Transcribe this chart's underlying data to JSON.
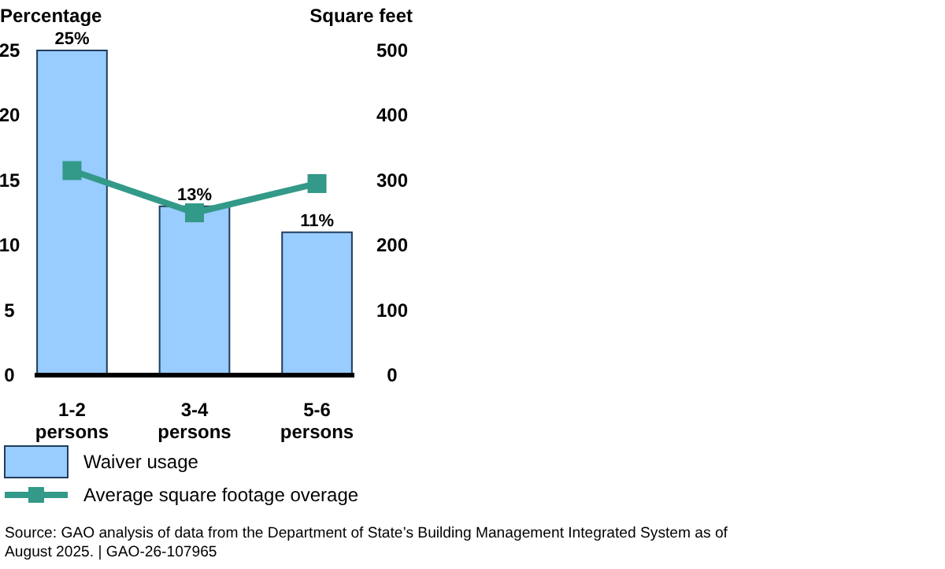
{
  "chart_data": {
    "type": "bar",
    "xlabel": null,
    "ylabel": "Percentage",
    "y2label": "Square feet",
    "categories": [
      "1-2\npersons",
      "3-4\npersons",
      "5-6\npersons"
    ],
    "series": [
      {
        "name": "Waiver usage",
        "color": "#99ccff",
        "values": [
          25,
          13,
          11
        ],
        "value_labels": [
          "25%",
          "13%",
          "11%"
        ]
      },
      {
        "name": "Average square footage overage",
        "type": "line",
        "axis": "y2",
        "color": "#339988",
        "values": [
          315,
          250,
          295
        ],
        "marker": "square"
      }
    ],
    "ylim": [
      0,
      25
    ],
    "yticks": [
      0,
      5,
      10,
      15,
      20,
      25
    ],
    "y2lim": [
      0,
      500
    ],
    "y2ticks": [
      0,
      100,
      200,
      300,
      400,
      500
    ],
    "legend": "bottom",
    "grid": false,
    "annotations": [
      "Source: GAO analysis of data from the Department of State’s Building Management Integrated System as of August 2025.  |  GAO-26-107965"
    ]
  }
}
